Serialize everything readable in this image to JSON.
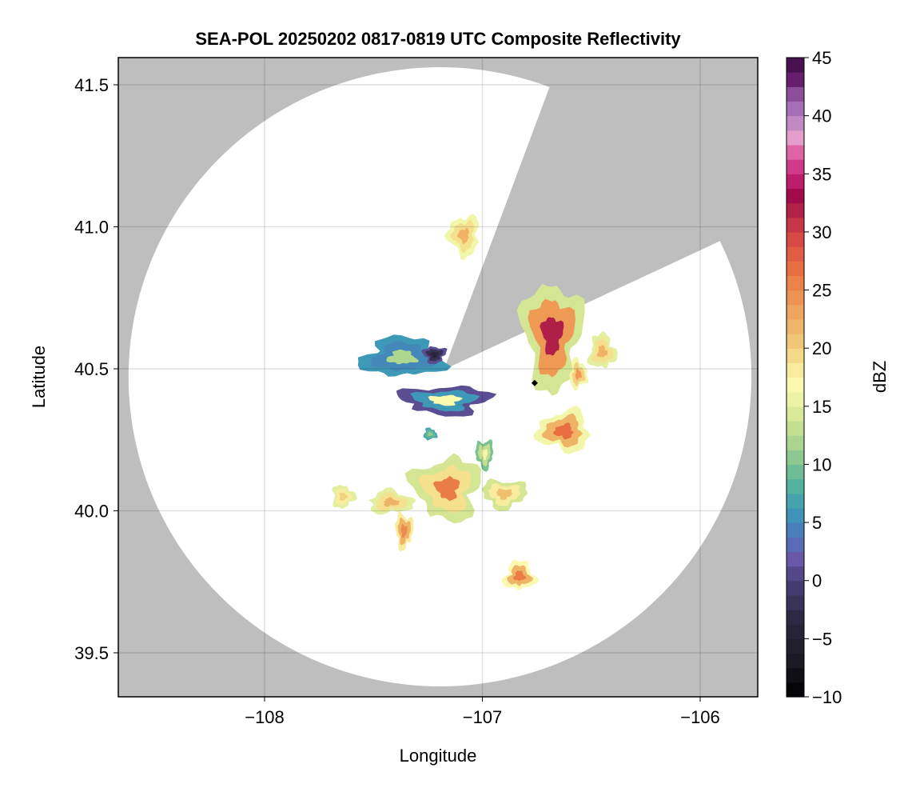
{
  "chart_data": {
    "type": "heatmap",
    "title": "SEA-POL 20250202 0817-0819 UTC Composite Reflectivity",
    "xlabel": "Longitude",
    "ylabel": "Latitude",
    "xlim": [
      -108.67,
      -105.73
    ],
    "ylim": [
      39.35,
      41.6
    ],
    "xticks": [
      -108,
      -107,
      -106
    ],
    "xtick_labels": [
      "−108",
      "−107",
      "−106"
    ],
    "yticks": [
      39.5,
      40.0,
      40.5,
      41.0,
      41.5
    ],
    "ytick_labels": [
      "39.5",
      "40.0",
      "40.5",
      "41.0",
      "41.5"
    ],
    "grid": true,
    "colorbar": {
      "label": "dBZ",
      "range": [
        -10,
        45
      ],
      "ticks": [
        -10,
        -5,
        0,
        5,
        10,
        15,
        20,
        25,
        30,
        35,
        40,
        45
      ],
      "tick_labels": [
        "−10",
        "−5",
        "0",
        "5",
        "10",
        "15",
        "20",
        "25",
        "30",
        "35",
        "40",
        "45"
      ],
      "placement": "right"
    },
    "colormap": [
      [
        -10,
        "#000000"
      ],
      [
        -7,
        "#1a1822"
      ],
      [
        -3,
        "#2e2a45"
      ],
      [
        0,
        "#4a3f7a"
      ],
      [
        2,
        "#6a5aaa"
      ],
      [
        4,
        "#4a78bb"
      ],
      [
        6,
        "#3e98b8"
      ],
      [
        8,
        "#4fb0a0"
      ],
      [
        10,
        "#7cc290"
      ],
      [
        12,
        "#aed68f"
      ],
      [
        14,
        "#d4e694"
      ],
      [
        16,
        "#f2f6a8"
      ],
      [
        17,
        "#fbf8b0"
      ],
      [
        19,
        "#f5e08e"
      ],
      [
        21,
        "#f0c070"
      ],
      [
        24,
        "#ee9a55"
      ],
      [
        27,
        "#e86d40"
      ],
      [
        30,
        "#d24045"
      ],
      [
        32,
        "#b01f48"
      ],
      [
        33,
        "#a00848"
      ],
      [
        35,
        "#c8257a"
      ],
      [
        37,
        "#e068a8"
      ],
      [
        38,
        "#e8a0cc"
      ],
      [
        40,
        "#b080c0"
      ],
      [
        42,
        "#8a4a98"
      ],
      [
        43,
        "#6a2070"
      ],
      [
        45,
        "#3a0a40"
      ]
    ],
    "radar": {
      "lon": -107.18,
      "lat": 40.5,
      "range_lon": 1.43,
      "range_lat": 1.09,
      "blocked_sector_deg": [
        15,
        57
      ]
    },
    "marker": {
      "lon": -106.76,
      "lat": 40.45
    },
    "echoes": [
      {
        "lon": -106.68,
        "lat": 40.62,
        "half_lon": 0.13,
        "half_lat": 0.19,
        "edge_dbz": 14,
        "mean_dbz": 24,
        "peak_dbz": 32
      },
      {
        "lon": -106.625,
        "lat": 40.28,
        "half_lon": 0.12,
        "half_lat": 0.07,
        "edge_dbz": 16,
        "mean_dbz": 22,
        "peak_dbz": 27
      },
      {
        "lon": -106.45,
        "lat": 40.56,
        "half_lon": 0.06,
        "half_lat": 0.06,
        "edge_dbz": 15,
        "mean_dbz": 19,
        "peak_dbz": 22
      },
      {
        "lon": -107.085,
        "lat": 40.97,
        "half_lon": 0.07,
        "half_lat": 0.07,
        "edge_dbz": 16,
        "mean_dbz": 19,
        "peak_dbz": 22
      },
      {
        "lon": -107.37,
        "lat": 40.54,
        "half_lon": 0.18,
        "half_lat": 0.07,
        "edge_dbz": 6,
        "mean_dbz": 5,
        "peak_dbz": 12
      },
      {
        "lon": -107.22,
        "lat": 40.55,
        "half_lon": 0.05,
        "half_lat": 0.03,
        "edge_dbz": 1,
        "mean_dbz": -2,
        "peak_dbz": -4
      },
      {
        "lon": -107.17,
        "lat": 40.39,
        "half_lon": 0.2,
        "half_lat": 0.05,
        "edge_dbz": 1,
        "mean_dbz": 6,
        "peak_dbz": 17
      },
      {
        "lon": -107.16,
        "lat": 40.08,
        "half_lon": 0.15,
        "half_lat": 0.11,
        "edge_dbz": 14,
        "mean_dbz": 19,
        "peak_dbz": 26
      },
      {
        "lon": -107.42,
        "lat": 40.03,
        "half_lon": 0.1,
        "half_lat": 0.04,
        "edge_dbz": 15,
        "mean_dbz": 19,
        "peak_dbz": 22
      },
      {
        "lon": -106.9,
        "lat": 40.06,
        "half_lon": 0.1,
        "half_lat": 0.05,
        "edge_dbz": 14,
        "mean_dbz": 18,
        "peak_dbz": 21
      },
      {
        "lon": -106.83,
        "lat": 39.77,
        "half_lon": 0.07,
        "half_lat": 0.05,
        "edge_dbz": 17,
        "mean_dbz": 22,
        "peak_dbz": 26
      },
      {
        "lon": -107.64,
        "lat": 40.05,
        "half_lon": 0.05,
        "half_lat": 0.04,
        "edge_dbz": 15,
        "mean_dbz": 18,
        "peak_dbz": 20
      },
      {
        "lon": -106.99,
        "lat": 40.2,
        "half_lon": 0.04,
        "half_lat": 0.05,
        "edge_dbz": 10,
        "mean_dbz": 13,
        "peak_dbz": 16
      },
      {
        "lon": -107.36,
        "lat": 39.93,
        "half_lon": 0.04,
        "half_lat": 0.06,
        "edge_dbz": 18,
        "mean_dbz": 22,
        "peak_dbz": 25
      },
      {
        "lon": -107.24,
        "lat": 40.27,
        "half_lon": 0.03,
        "half_lat": 0.02,
        "edge_dbz": 7,
        "mean_dbz": 9,
        "peak_dbz": 11
      },
      {
        "lon": -106.56,
        "lat": 40.48,
        "half_lon": 0.04,
        "half_lat": 0.05,
        "edge_dbz": 16,
        "mean_dbz": 20,
        "peak_dbz": 24
      }
    ]
  }
}
